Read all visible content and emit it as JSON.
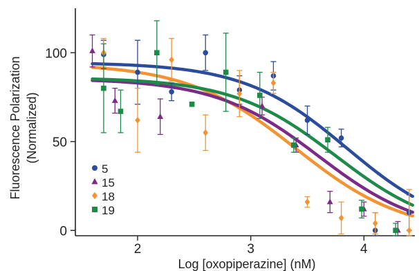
{
  "chart_data": {
    "type": "scatter",
    "xlabel": "Log [oxopiperazine] (nM)",
    "ylabel_line1": "Fluorescence Polarization",
    "ylabel_line2": "(Normalized)",
    "xlim": [
      1.45,
      4.45
    ],
    "ylim": [
      -3,
      125
    ],
    "xticks": [
      2,
      3,
      4
    ],
    "yticks": [
      0,
      50,
      100
    ],
    "grid": false,
    "legend_position": "bottom-left",
    "series": [
      {
        "name": "5",
        "color": "#2b4b9b",
        "marker": "circle",
        "points": [
          {
            "x": 1.7,
            "y": 99,
            "err": 8
          },
          {
            "x": 2.0,
            "y": 89,
            "err": 18
          },
          {
            "x": 2.3,
            "y": 78,
            "err": 5
          },
          {
            "x": 2.6,
            "y": 100,
            "err": 10
          },
          {
            "x": 2.9,
            "y": 79,
            "err": 8
          },
          {
            "x": 3.2,
            "y": 87,
            "err": 8
          },
          {
            "x": 3.5,
            "y": 62,
            "err": 8
          },
          {
            "x": 3.8,
            "y": 52,
            "err": 5
          },
          {
            "x": 4.1,
            "y": 0,
            "err": 10
          },
          {
            "x": 4.4,
            "y": 10,
            "err": 10
          }
        ],
        "fit": {
          "top": 94.5,
          "bottom": -2,
          "log_ic50": 3.85,
          "hill": 0.95
        }
      },
      {
        "name": "15",
        "color": "#7b2a86",
        "marker": "triangle",
        "points": [
          {
            "x": 1.6,
            "y": 101,
            "err": 9
          },
          {
            "x": 1.8,
            "y": 73,
            "err": 7
          },
          {
            "x": 2.2,
            "y": 64,
            "err": 10
          },
          {
            "x": 3.1,
            "y": 70,
            "err": 5
          },
          {
            "x": 3.4,
            "y": 48,
            "err": 4
          },
          {
            "x": 3.7,
            "y": 16,
            "err": 6
          },
          {
            "x": 4.0,
            "y": 12,
            "err": 4
          },
          {
            "x": 4.3,
            "y": 0,
            "err": 5
          }
        ],
        "fit": {
          "top": 85.5,
          "bottom": -2,
          "log_ic50": 3.6,
          "hill": 0.95
        }
      },
      {
        "name": "18",
        "color": "#f29433",
        "marker": "diamond",
        "points": [
          {
            "x": 1.7,
            "y": 100,
            "err": 8
          },
          {
            "x": 2.0,
            "y": 62,
            "err": 18
          },
          {
            "x": 2.3,
            "y": 96,
            "err": 12
          },
          {
            "x": 2.6,
            "y": 55,
            "err": 10
          },
          {
            "x": 2.9,
            "y": 77,
            "err": 13
          },
          {
            "x": 3.2,
            "y": 83,
            "err": 6
          },
          {
            "x": 3.5,
            "y": 16,
            "err": 3
          },
          {
            "x": 3.8,
            "y": 7,
            "err": 9
          },
          {
            "x": 4.1,
            "y": 4,
            "err": 6
          },
          {
            "x": 4.4,
            "y": 0,
            "err": 23
          }
        ],
        "fit": {
          "top": 94,
          "bottom": -2,
          "log_ic50": 3.4,
          "hill": 0.9
        }
      },
      {
        "name": "19",
        "color": "#1e8a4a",
        "marker": "square",
        "points": [
          {
            "x": 1.7,
            "y": 80,
            "err": 25
          },
          {
            "x": 1.85,
            "y": 67,
            "err": 12
          },
          {
            "x": 2.17,
            "y": 100,
            "err": 18
          },
          {
            "x": 2.48,
            "y": 71,
            "err": 0
          },
          {
            "x": 2.78,
            "y": 89,
            "err": 22
          },
          {
            "x": 3.08,
            "y": 76,
            "err": 13
          },
          {
            "x": 3.38,
            "y": 48,
            "err": 4
          },
          {
            "x": 3.68,
            "y": 51,
            "err": 7
          },
          {
            "x": 3.98,
            "y": 12,
            "err": 5
          },
          {
            "x": 4.28,
            "y": 0,
            "err": 4
          }
        ],
        "fit": {
          "top": 86,
          "bottom": -2,
          "log_ic50": 3.75,
          "hill": 0.95
        }
      }
    ]
  }
}
